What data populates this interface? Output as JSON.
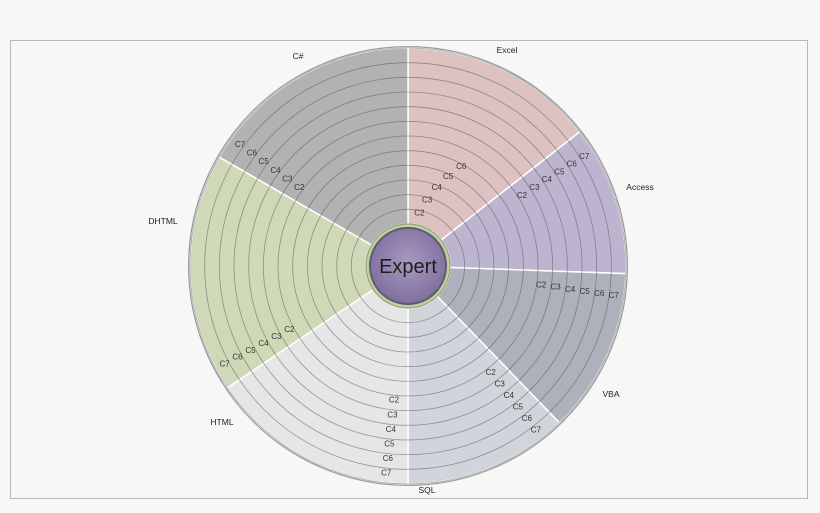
{
  "chart_data": {
    "type": "radial",
    "center_label": "Expert",
    "categories": [
      {
        "name": "Excel",
        "color": "#d9b8b8",
        "ring_labels": [
          "C2",
          "C3",
          "C4",
          "C5",
          "C6"
        ]
      },
      {
        "name": "Access",
        "color": "#b3a9c8",
        "ring_labels": [
          "C2",
          "C3",
          "C4",
          "C5",
          "C6",
          "C7"
        ]
      },
      {
        "name": "VBA",
        "color": "#9fa5b0",
        "ring_labels": [
          "C2",
          "C3",
          "C4",
          "C5",
          "C6",
          "C7"
        ]
      },
      {
        "name": "SQL",
        "color": "#c9ced6",
        "ring_labels": [
          "C2",
          "C3",
          "C4",
          "C5",
          "C6",
          "C7"
        ]
      },
      {
        "name": "HTML",
        "color": "#e3e3e3",
        "ring_labels": [
          "C2",
          "C3",
          "C4",
          "C5",
          "C6",
          "C7"
        ]
      },
      {
        "name": "DHTML",
        "color": "#c8d2ac",
        "ring_labels": [
          "C2",
          "C3",
          "C4",
          "C5",
          "C6",
          "C7"
        ]
      },
      {
        "name": "C#",
        "color": "#a6a6a6",
        "ring_labels": [
          "C2",
          "C3",
          "C4",
          "C5",
          "C6",
          "C7"
        ]
      }
    ],
    "rings": 12
  }
}
